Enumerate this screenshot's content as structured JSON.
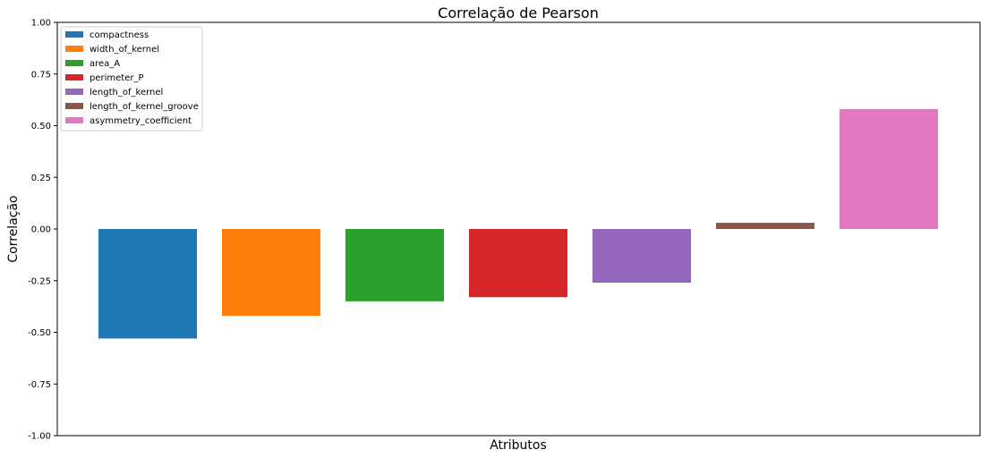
{
  "chart_data": {
    "type": "bar",
    "title": "Correlação de Pearson",
    "xlabel": "Atributos",
    "ylabel": "Correlação",
    "ylim": [
      -1.0,
      1.0
    ],
    "yticks": [
      "-1.00",
      "-0.75",
      "-0.50",
      "-0.25",
      "0.00",
      "0.25",
      "0.50",
      "0.75",
      "1.00"
    ],
    "grid": false,
    "legend_position": "top-left",
    "series": [
      {
        "name": "compactness",
        "value": -0.53,
        "color": "#1f77b4"
      },
      {
        "name": "width_of_kernel",
        "value": -0.42,
        "color": "#ff7f0e"
      },
      {
        "name": "area_A",
        "value": -0.35,
        "color": "#2ca02c"
      },
      {
        "name": "perimeter_P",
        "value": -0.33,
        "color": "#d62728"
      },
      {
        "name": "length_of_kernel",
        "value": -0.26,
        "color": "#9467bd"
      },
      {
        "name": "length_of_kernel_groove",
        "value": 0.03,
        "color": "#8c564b"
      },
      {
        "name": "asymmetry_coefficient",
        "value": 0.58,
        "color": "#e377c2"
      }
    ]
  }
}
